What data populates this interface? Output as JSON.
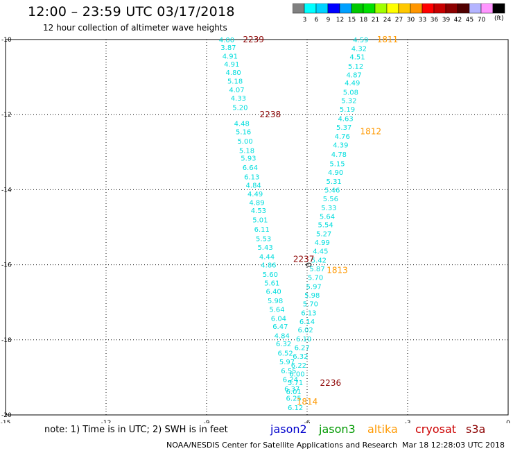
{
  "title": "12:00 – 23:59 UTC 03/17/2018",
  "subtitle": "12 hour collection of altimeter wave heights",
  "colorbar": {
    "colors": [
      "#808080",
      "#00ffff",
      "#00d2ff",
      "#0000ff",
      "#00a0ff",
      "#00c800",
      "#00e000",
      "#a0ff00",
      "#ffff00",
      "#ffc800",
      "#ff9600",
      "#ff0000",
      "#c80000",
      "#8c0000",
      "#500000",
      "#b4b4ff",
      "#ff96ff",
      "#000000"
    ],
    "labels": [
      "3",
      "6",
      "9",
      "12",
      "15",
      "18",
      "21",
      "24",
      "27",
      "30",
      "33",
      "36",
      "39",
      "42",
      "45",
      "70"
    ],
    "units": "(ft)"
  },
  "note": "note:  1) Time is in UTC;  2) SWH is in feet",
  "satellites": [
    {
      "name": "jason2",
      "color": "#0000cc"
    },
    {
      "name": "jason3",
      "color": "#009900"
    },
    {
      "name": "altika",
      "color": "#ff9900"
    },
    {
      "name": "cryosat",
      "color": "#cc0000"
    },
    {
      "name": "s3a",
      "color": "#8b0000"
    }
  ],
  "credit": "NOAA/NESDIS Center for Satellite Applications and Research",
  "timestamp": "Mar 18 12:28:03 UTC 2018",
  "chart_data": {
    "type": "scatter",
    "xlim": [
      -15,
      0
    ],
    "ylim": [
      -20,
      -10
    ],
    "xticks": [
      "-15",
      "-12",
      "-9",
      "-6",
      "-3",
      "0"
    ],
    "yticks": [
      "-10",
      "-12",
      "-14",
      "-16",
      "-18",
      "-20"
    ],
    "grid": true,
    "value_color": "#00dddd",
    "time_labels": [
      {
        "text": "2239",
        "x": -7.6,
        "y": -10.0,
        "color": "#8b0000"
      },
      {
        "text": "2238",
        "x": -7.1,
        "y": -12.0,
        "color": "#8b0000"
      },
      {
        "text": "2237",
        "x": -6.1,
        "y": -15.85,
        "color": "#8b0000"
      },
      {
        "text": "2236",
        "x": -5.3,
        "y": -19.15,
        "color": "#8b0000"
      },
      {
        "text": "1811",
        "x": -3.6,
        "y": -10.0,
        "color": "#ff9900"
      },
      {
        "text": "1812",
        "x": -4.1,
        "y": -12.45,
        "color": "#ff9900"
      },
      {
        "text": "1813",
        "x": -5.1,
        "y": -16.15,
        "color": "#ff9900"
      },
      {
        "text": "1814",
        "x": -6.0,
        "y": -19.65,
        "color": "#ff9900"
      }
    ],
    "track_a": [
      {
        "x": -8.4,
        "y": -10.0,
        "v": "4.00"
      },
      {
        "x": -8.35,
        "y": -10.2,
        "v": "3.87"
      },
      {
        "x": -8.3,
        "y": -10.43,
        "v": "4.91"
      },
      {
        "x": -8.25,
        "y": -10.65,
        "v": "4.91"
      },
      {
        "x": -8.2,
        "y": -10.87,
        "v": "4.80"
      },
      {
        "x": -8.15,
        "y": -11.1,
        "v": "5.18"
      },
      {
        "x": -8.1,
        "y": -11.33,
        "v": "4.07"
      },
      {
        "x": -8.05,
        "y": -11.55,
        "v": "4.33"
      },
      {
        "x": -8.0,
        "y": -11.8,
        "v": "5.20"
      },
      {
        "x": -7.95,
        "y": -12.23,
        "v": "4.48"
      },
      {
        "x": -7.9,
        "y": -12.45,
        "v": "5.16"
      },
      {
        "x": -7.85,
        "y": -12.7,
        "v": "5.00"
      },
      {
        "x": -7.8,
        "y": -12.95,
        "v": "5.18"
      },
      {
        "x": -7.75,
        "y": -13.15,
        "v": "5.93"
      },
      {
        "x": -7.7,
        "y": -13.4,
        "v": "6.64"
      },
      {
        "x": -7.65,
        "y": -13.65,
        "v": "6.13"
      },
      {
        "x": -7.6,
        "y": -13.87,
        "v": "4.84"
      },
      {
        "x": -7.55,
        "y": -14.1,
        "v": "4.49"
      },
      {
        "x": -7.5,
        "y": -14.33,
        "v": "4.89"
      },
      {
        "x": -7.45,
        "y": -14.55,
        "v": "4.53"
      },
      {
        "x": -7.4,
        "y": -14.8,
        "v": "5.01"
      },
      {
        "x": -7.35,
        "y": -15.05,
        "v": "6.11"
      },
      {
        "x": -7.3,
        "y": -15.3,
        "v": "5.53"
      },
      {
        "x": -7.25,
        "y": -15.53,
        "v": "5.43"
      },
      {
        "x": -7.2,
        "y": -15.78,
        "v": "4.44"
      },
      {
        "x": -7.15,
        "y": -16.0,
        "v": "4.86"
      },
      {
        "x": -7.1,
        "y": -16.25,
        "v": "5.60"
      },
      {
        "x": -7.05,
        "y": -16.48,
        "v": "5.61"
      },
      {
        "x": -7.0,
        "y": -16.7,
        "v": "6.40"
      },
      {
        "x": -6.95,
        "y": -16.95,
        "v": "5.98"
      },
      {
        "x": -6.9,
        "y": -17.18,
        "v": "5.64"
      },
      {
        "x": -6.85,
        "y": -17.42,
        "v": "6.04"
      },
      {
        "x": -6.8,
        "y": -17.63,
        "v": "6.47"
      },
      {
        "x": -6.75,
        "y": -17.88,
        "v": "4.84"
      },
      {
        "x": -6.7,
        "y": -18.1,
        "v": "6.32"
      },
      {
        "x": -6.65,
        "y": -18.35,
        "v": "6.52"
      },
      {
        "x": -6.6,
        "y": -18.58,
        "v": "5.97"
      },
      {
        "x": -6.55,
        "y": -18.82,
        "v": "6.55"
      },
      {
        "x": -6.5,
        "y": -19.05,
        "v": "6.24"
      },
      {
        "x": -6.45,
        "y": -19.3,
        "v": "6.37"
      },
      {
        "x": -6.4,
        "y": -19.55,
        "v": "6.25"
      },
      {
        "x": -6.35,
        "y": -19.8,
        "v": "6.12"
      }
    ],
    "track_b": [
      {
        "x": -4.4,
        "y": -10.0,
        "v": "4.59"
      },
      {
        "x": -4.45,
        "y": -10.23,
        "v": "4.32"
      },
      {
        "x": -4.5,
        "y": -10.45,
        "v": "4.51"
      },
      {
        "x": -4.55,
        "y": -10.7,
        "v": "5.12"
      },
      {
        "x": -4.6,
        "y": -10.93,
        "v": "4.87"
      },
      {
        "x": -4.65,
        "y": -11.15,
        "v": "4.49"
      },
      {
        "x": -4.7,
        "y": -11.4,
        "v": "5.08"
      },
      {
        "x": -4.75,
        "y": -11.62,
        "v": "5.32"
      },
      {
        "x": -4.8,
        "y": -11.85,
        "v": "5.19"
      },
      {
        "x": -4.85,
        "y": -12.1,
        "v": "4.63"
      },
      {
        "x": -4.9,
        "y": -12.33,
        "v": "5.37"
      },
      {
        "x": -4.95,
        "y": -12.57,
        "v": "4.76"
      },
      {
        "x": -5.0,
        "y": -12.8,
        "v": "4.39"
      },
      {
        "x": -5.05,
        "y": -13.05,
        "v": "4.78"
      },
      {
        "x": -5.1,
        "y": -13.3,
        "v": "5.15"
      },
      {
        "x": -5.15,
        "y": -13.53,
        "v": "4.90"
      },
      {
        "x": -5.2,
        "y": -13.77,
        "v": "5.31"
      },
      {
        "x": -5.25,
        "y": -14.0,
        "v": "5.46"
      },
      {
        "x": -5.3,
        "y": -14.23,
        "v": "5.56"
      },
      {
        "x": -5.35,
        "y": -14.47,
        "v": "5.33"
      },
      {
        "x": -5.4,
        "y": -14.7,
        "v": "5.64"
      },
      {
        "x": -5.45,
        "y": -14.93,
        "v": "5.54"
      },
      {
        "x": -5.5,
        "y": -15.17,
        "v": "5.27"
      },
      {
        "x": -5.55,
        "y": -15.4,
        "v": "4.99"
      },
      {
        "x": -5.6,
        "y": -15.63,
        "v": "4.45"
      },
      {
        "x": -5.65,
        "y": -15.87,
        "v": "5.42"
      },
      {
        "x": -5.7,
        "y": -16.1,
        "v": "5.87"
      },
      {
        "x": -5.75,
        "y": -16.33,
        "v": "5.70"
      },
      {
        "x": -5.8,
        "y": -16.57,
        "v": "5.97"
      },
      {
        "x": -5.85,
        "y": -16.8,
        "v": "5.98"
      },
      {
        "x": -5.9,
        "y": -17.03,
        "v": "5.70"
      },
      {
        "x": -5.95,
        "y": -17.27,
        "v": "6.13"
      },
      {
        "x": -6.0,
        "y": -17.5,
        "v": "6.14"
      },
      {
        "x": -6.05,
        "y": -17.73,
        "v": "6.02"
      },
      {
        "x": -6.1,
        "y": -17.97,
        "v": "6.10"
      },
      {
        "x": -6.15,
        "y": -18.2,
        "v": "6.27"
      },
      {
        "x": -6.2,
        "y": -18.43,
        "v": "6.32"
      },
      {
        "x": -6.25,
        "y": -18.67,
        "v": "6.22"
      },
      {
        "x": -6.3,
        "y": -18.9,
        "v": "6.00"
      },
      {
        "x": -6.35,
        "y": -19.13,
        "v": "5.71"
      },
      {
        "x": -6.4,
        "y": -19.37,
        "v": "6.01"
      }
    ]
  }
}
